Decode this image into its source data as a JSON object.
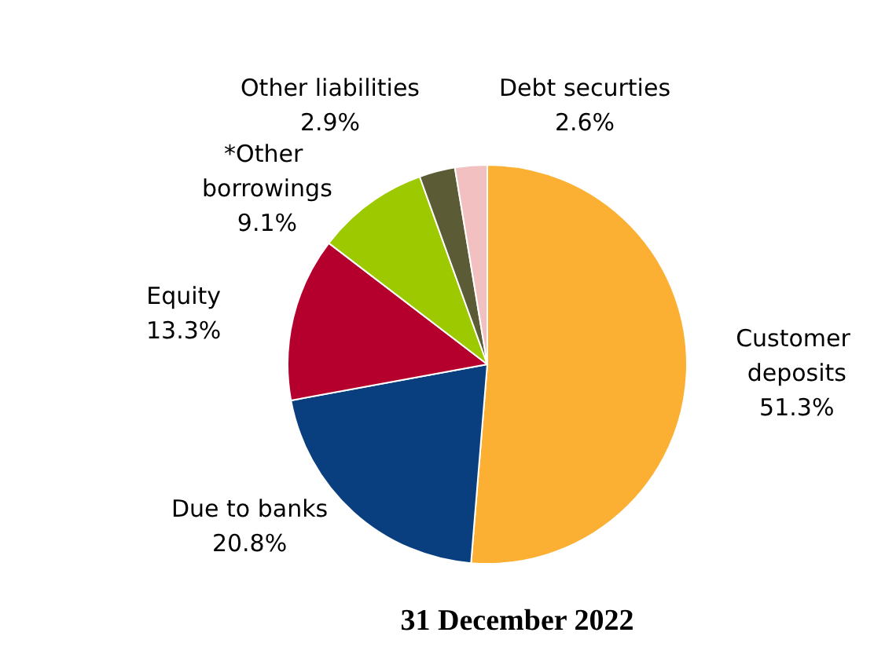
{
  "chart_data": {
    "type": "pie",
    "title": "31 December 2022",
    "categories": [
      "Customer deposits",
      "Due to banks",
      "Equity",
      "*Other borrowings",
      "Other liabilities",
      "Debt securties"
    ],
    "values": [
      51.3,
      20.8,
      13.3,
      9.1,
      2.9,
      2.6
    ],
    "value_labels": [
      "51.3%",
      "20.8%",
      "13.3%",
      "9.1%",
      "2.9%",
      "2.6%"
    ],
    "colors": [
      "#fbb034",
      "#0a3f7f",
      "#b5002e",
      "#9dc900",
      "#5b5b35",
      "#f2c0c0"
    ],
    "legend": false
  }
}
